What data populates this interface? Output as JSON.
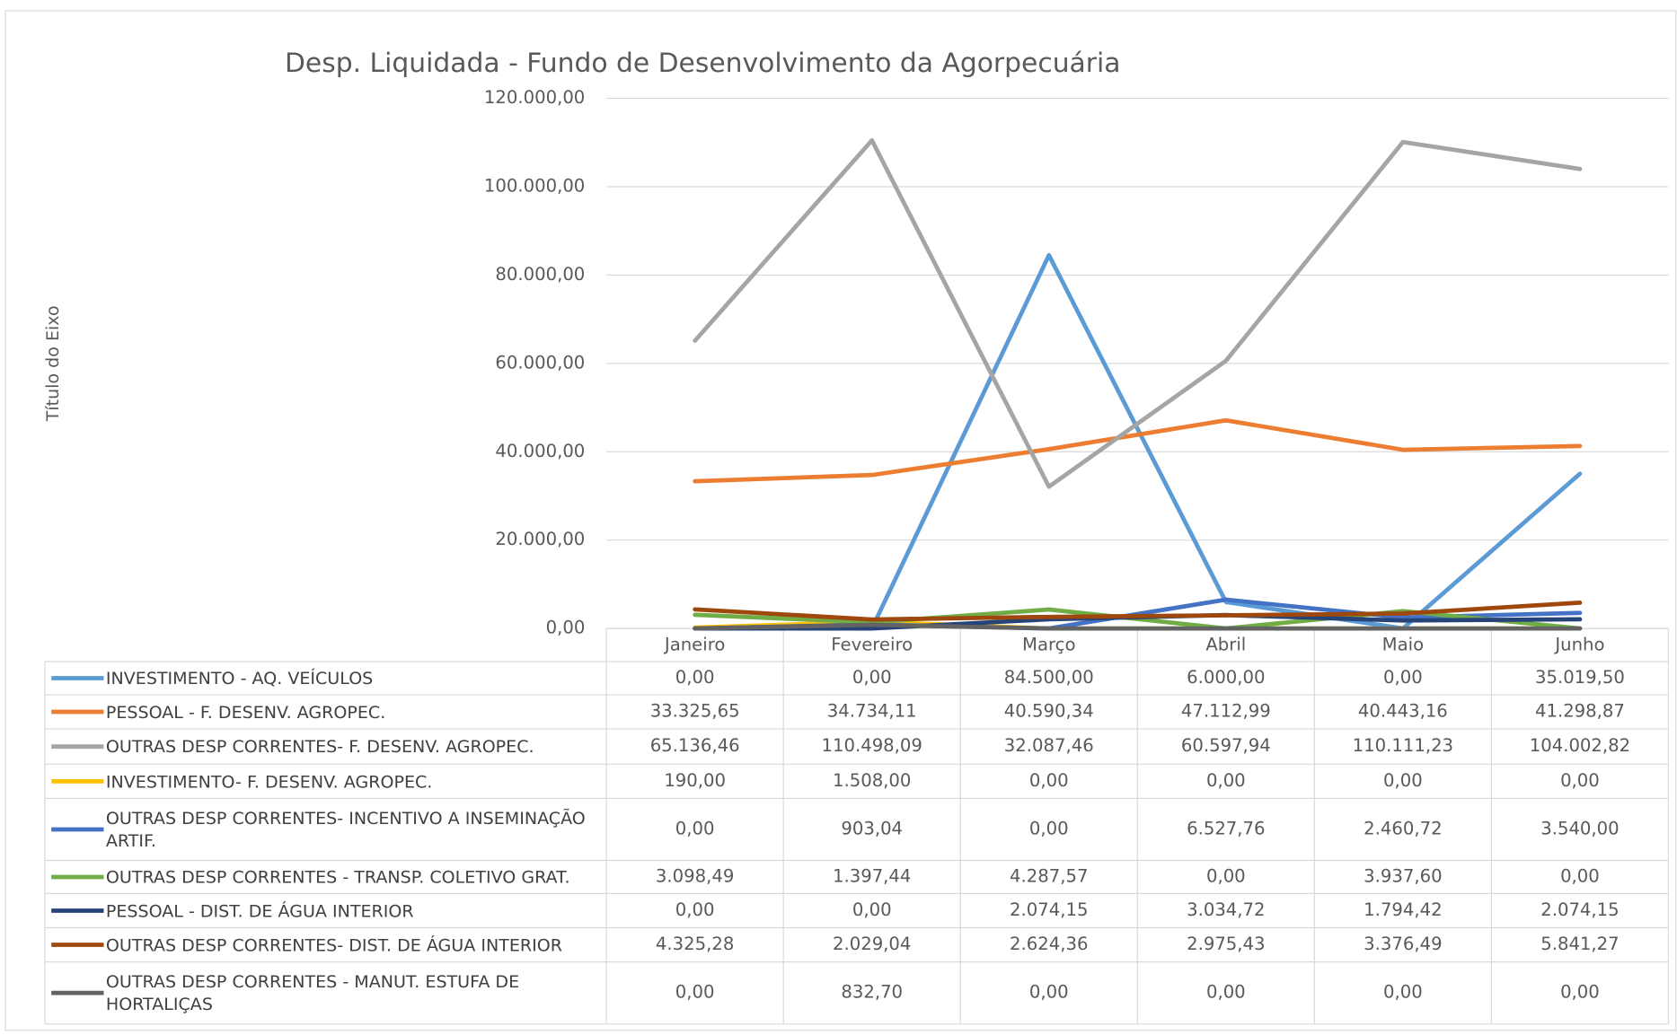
{
  "chart_data": {
    "type": "line",
    "title": "Desp. Liquidada - Fundo de Desenvolvimento da Agorpecuária",
    "y_axis_label": "Título do Eixo",
    "categories": [
      "Janeiro",
      "Fevereiro",
      "Março",
      "Abril",
      "Maio",
      "Junho"
    ],
    "ylim": [
      0,
      120000
    ],
    "yticks": [
      {
        "value": 0,
        "label": "0,00"
      },
      {
        "value": 20000,
        "label": "20.000,00"
      },
      {
        "value": 40000,
        "label": "40.000,00"
      },
      {
        "value": 60000,
        "label": "60.000,00"
      },
      {
        "value": 80000,
        "label": "80.000,00"
      },
      {
        "value": 100000,
        "label": "100.000,00"
      },
      {
        "value": 120000,
        "label": "120.000,00"
      }
    ],
    "grid": true,
    "series": [
      {
        "name": "INVESTIMENTO - AQ. VEÍCULOS",
        "color": "#5b9bd5",
        "values": [
          0,
          0,
          84500,
          6000,
          0,
          35019.5
        ],
        "value_labels": [
          "0,00",
          "0,00",
          "84.500,00",
          "6.000,00",
          "0,00",
          "35.019,50"
        ]
      },
      {
        "name": "PESSOAL - F. DESENV. AGROPEC.",
        "color": "#ed7d31",
        "values": [
          33325.65,
          34734.11,
          40590.34,
          47112.99,
          40443.16,
          41298.87
        ],
        "value_labels": [
          "33.325,65",
          "34.734,11",
          "40.590,34",
          "47.112,99",
          "40.443,16",
          "41.298,87"
        ]
      },
      {
        "name": "OUTRAS DESP CORRENTES- F. DESENV. AGROPEC.",
        "color": "#a5a5a5",
        "values": [
          65136.46,
          110498.09,
          32087.46,
          60597.94,
          110111.23,
          104002.82
        ],
        "value_labels": [
          "65.136,46",
          "110.498,09",
          "32.087,46",
          "60.597,94",
          "110.111,23",
          "104.002,82"
        ]
      },
      {
        "name": "INVESTIMENTO- F. DESENV. AGROPEC.",
        "color": "#ffc000",
        "values": [
          190,
          1508,
          0,
          0,
          0,
          0
        ],
        "value_labels": [
          "190,00",
          "1.508,00",
          "0,00",
          "0,00",
          "0,00",
          "0,00"
        ]
      },
      {
        "name": "OUTRAS DESP CORRENTES- INCENTIVO A INSEMINAÇÃO ARTIF.",
        "color": "#4472c4",
        "values": [
          0,
          903.04,
          0,
          6527.76,
          2460.72,
          3540
        ],
        "value_labels": [
          "0,00",
          "903,04",
          "0,00",
          "6.527,76",
          "2.460,72",
          "3.540,00"
        ]
      },
      {
        "name": "OUTRAS DESP CORRENTES - TRANSP. COLETIVO GRAT.",
        "color": "#70ad47",
        "values": [
          3098.49,
          1397.44,
          4287.57,
          0,
          3937.6,
          0
        ],
        "value_labels": [
          "3.098,49",
          "1.397,44",
          "4.287,57",
          "0,00",
          "3.937,60",
          "0,00"
        ]
      },
      {
        "name": "PESSOAL - DIST. DE ÁGUA INTERIOR",
        "color": "#264478",
        "values": [
          0,
          0,
          2074.15,
          3034.72,
          1794.42,
          2074.15
        ],
        "value_labels": [
          "0,00",
          "0,00",
          "2.074,15",
          "3.034,72",
          "1.794,42",
          "2.074,15"
        ]
      },
      {
        "name": "OUTRAS DESP CORRENTES- DIST. DE ÁGUA INTERIOR",
        "color": "#9e480e",
        "values": [
          4325.28,
          2029.04,
          2624.36,
          2975.43,
          3376.49,
          5841.27
        ],
        "value_labels": [
          "4.325,28",
          "2.029,04",
          "2.624,36",
          "2.975,43",
          "3.376,49",
          "5.841,27"
        ]
      },
      {
        "name": "OUTRAS DESP CORRENTES - MANUT. ESTUFA DE HORTALIÇAS",
        "color": "#636363",
        "values": [
          0,
          832.7,
          0,
          0,
          0,
          0
        ],
        "value_labels": [
          "0,00",
          "832,70",
          "0,00",
          "0,00",
          "0,00",
          "0,00"
        ]
      }
    ]
  }
}
